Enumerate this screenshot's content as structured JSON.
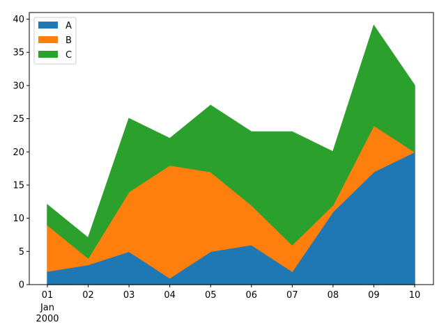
{
  "chart_data": {
    "type": "area",
    "stacked": true,
    "x": [
      "01",
      "02",
      "03",
      "04",
      "05",
      "06",
      "07",
      "08",
      "09",
      "10"
    ],
    "x_sublabel": [
      "Jan",
      "2000"
    ],
    "series": [
      {
        "name": "A",
        "color": "#1f77b4",
        "values": [
          2,
          3,
          5,
          1,
          5,
          6,
          2,
          11,
          17,
          20
        ]
      },
      {
        "name": "B",
        "color": "#ff7f0e",
        "values": [
          7,
          1,
          9,
          17,
          12,
          6,
          4,
          1,
          7,
          0
        ]
      },
      {
        "name": "C",
        "color": "#2ca02c",
        "values": [
          3,
          3,
          11,
          4,
          10,
          11,
          17,
          8,
          15,
          10
        ]
      }
    ],
    "ylim": [
      0,
      41
    ],
    "yticks": [
      "0",
      "5",
      "10",
      "15",
      "20",
      "25",
      "30",
      "35",
      "40"
    ],
    "grid": false,
    "legend": "top-left"
  }
}
